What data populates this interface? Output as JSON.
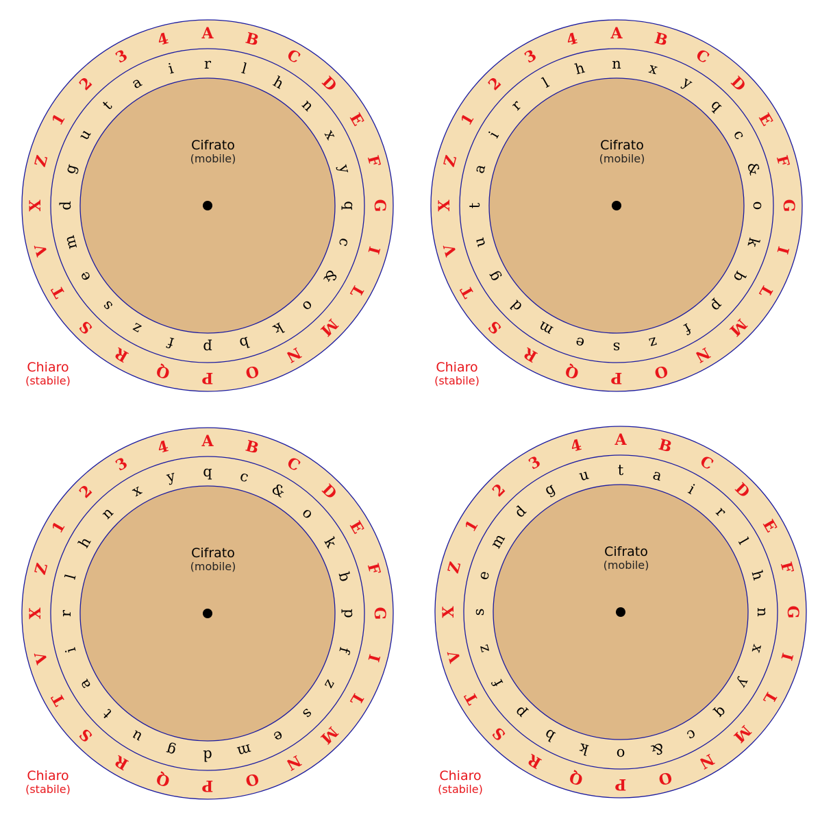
{
  "colors": {
    "outer_ring": "#f5deb3",
    "inner_disk": "#deb887",
    "ring_stroke": "#1a1aa0",
    "plain_text": "#e8161b",
    "cipher_text": "#000000",
    "center_dot": "#000000"
  },
  "plain_alphabet": [
    "A",
    "B",
    "C",
    "D",
    "E",
    "F",
    "G",
    "I",
    "L",
    "M",
    "N",
    "O",
    "P",
    "Q",
    "R",
    "S",
    "T",
    "V",
    "X",
    "Z",
    "1",
    "2",
    "3",
    "4"
  ],
  "cipher_alphabet": [
    "r",
    "l",
    "h",
    "n",
    "x",
    "y",
    "q",
    "c",
    "&",
    "o",
    "k",
    "b",
    "p",
    "f",
    "z",
    "s",
    "e",
    "m",
    "d",
    "g",
    "u",
    "t",
    "a",
    "i"
  ],
  "disks": [
    {
      "inner_title": "Cifrato",
      "inner_subtitle": "(mobile)",
      "outer_label": "Chiaro",
      "outer_sublabel": "(stabile)",
      "cipher_letter_under_A": "r"
    },
    {
      "inner_title": "Cifrato",
      "inner_subtitle": "(mobile)",
      "outer_label": "Chiaro",
      "outer_sublabel": "(stabile)",
      "cipher_letter_under_A": "n"
    },
    {
      "inner_title": "Cifrato",
      "inner_subtitle": "(mobile)",
      "outer_label": "Chiaro",
      "outer_sublabel": "(stabile)",
      "cipher_letter_under_A": "q"
    },
    {
      "inner_title": "Cifrato",
      "inner_subtitle": "(mobile)",
      "outer_label": "Chiaro",
      "outer_sublabel": "(stabile)",
      "cipher_letter_under_A": "t"
    }
  ]
}
